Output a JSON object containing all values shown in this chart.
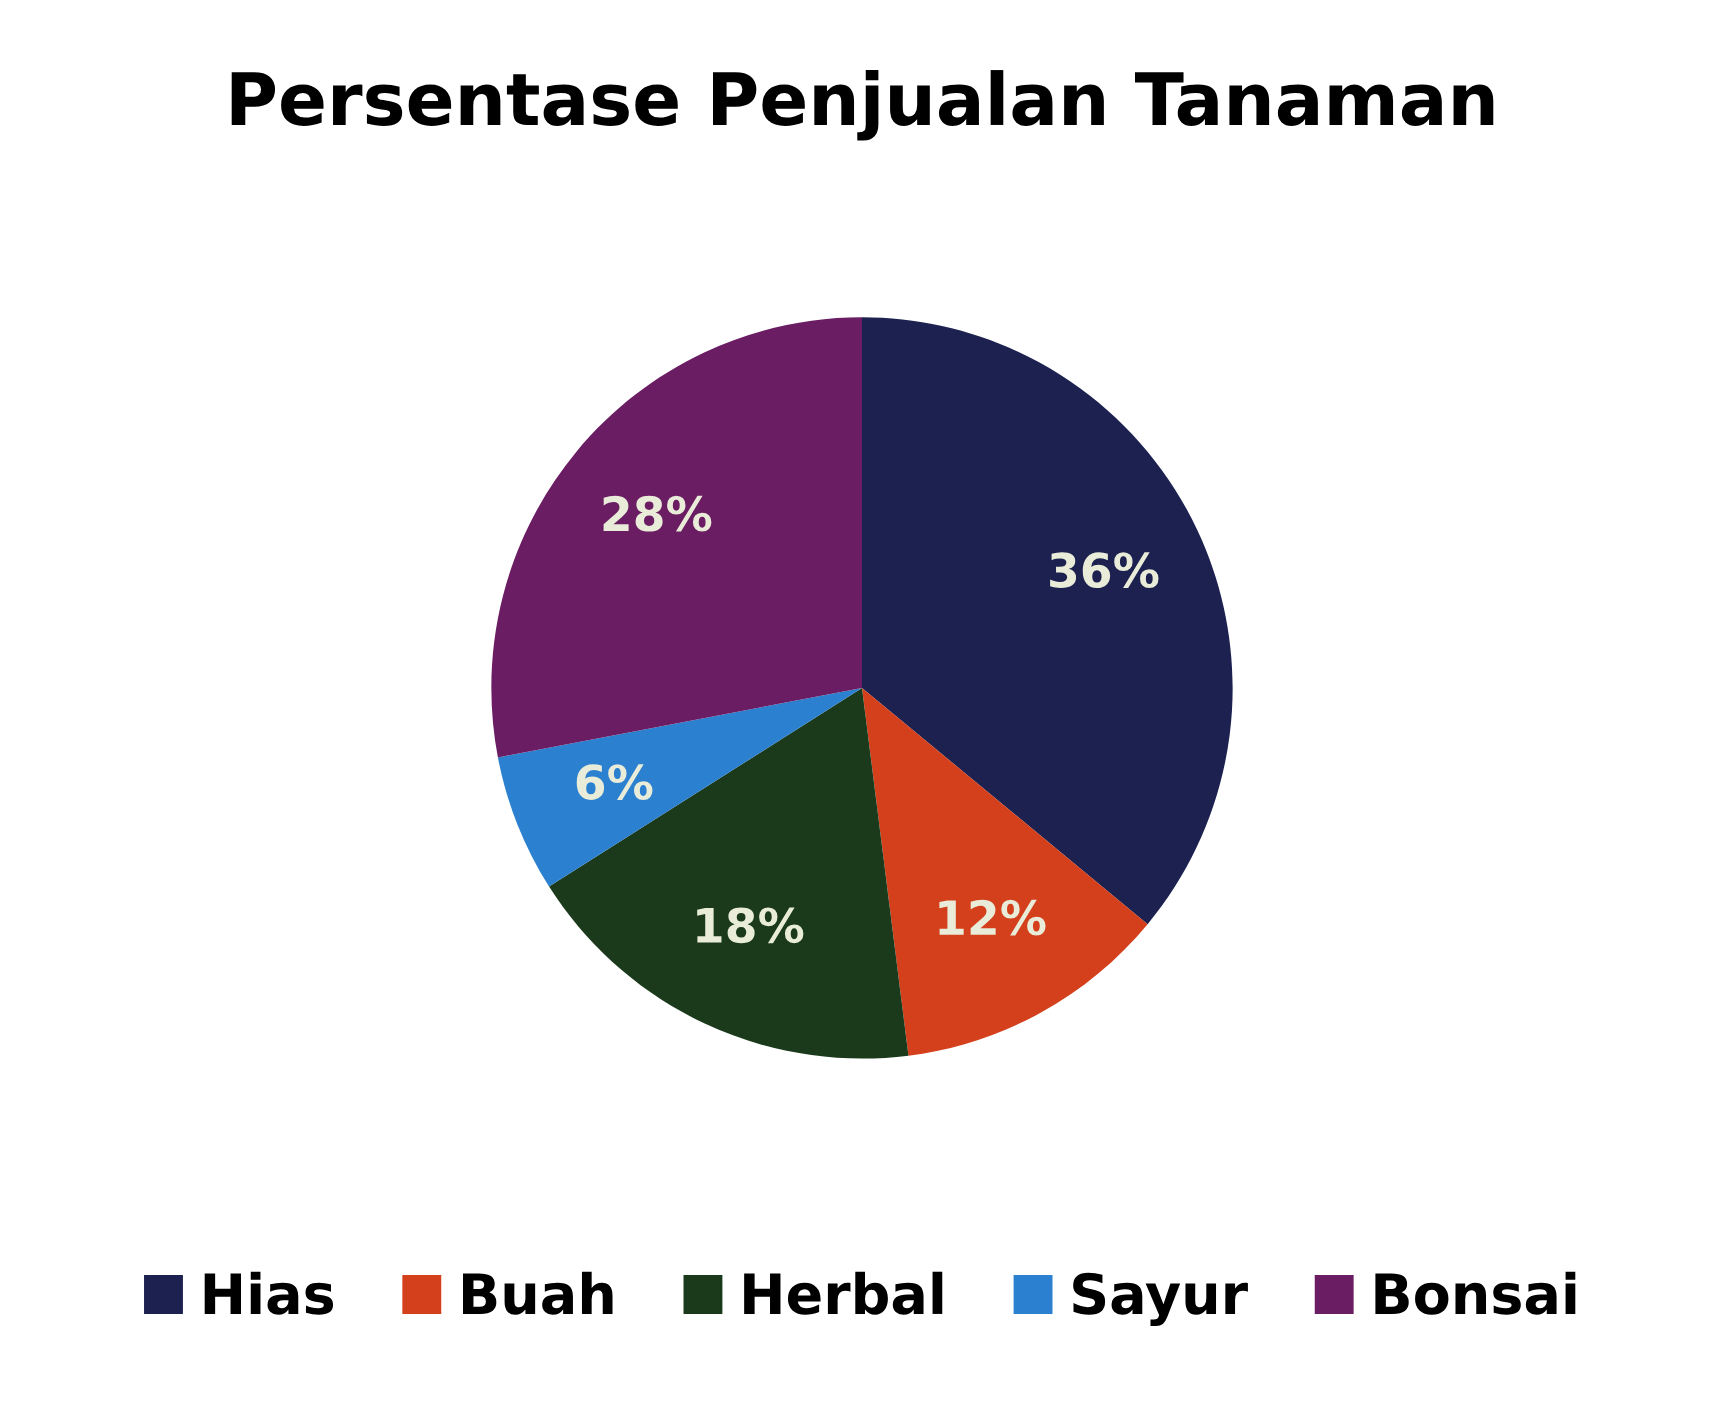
{
  "chart_data": {
    "type": "pie",
    "title": "Persentase Penjualan Tanaman",
    "categories": [
      "Hias",
      "Buah",
      "Herbal",
      "Sayur",
      "Bonsai"
    ],
    "values": [
      36,
      12,
      18,
      6,
      28
    ],
    "value_labels": [
      "36%",
      "12%",
      "18%",
      "6%",
      "28%"
    ],
    "colors": [
      "#1c2150",
      "#d4401c",
      "#1b3a1c",
      "#2b80cf",
      "#6b1d63"
    ],
    "legend": "bottom"
  }
}
